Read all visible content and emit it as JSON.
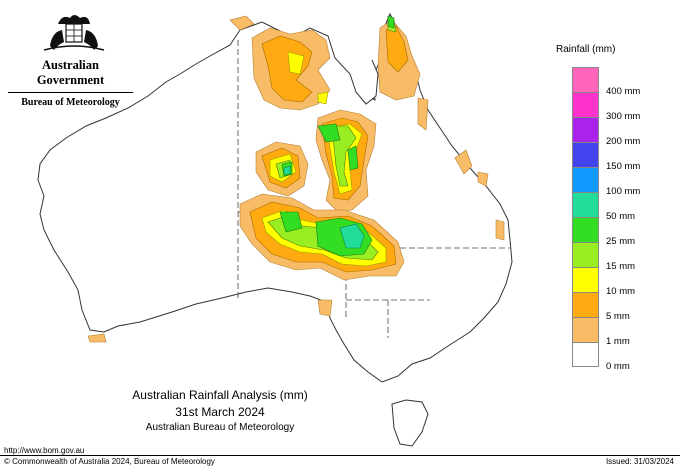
{
  "header": {
    "government": "Australian Government",
    "agency": "Bureau of Meteorology"
  },
  "legend": {
    "title": "Rainfall (mm)",
    "items": [
      {
        "label": "",
        "color": "#ff66bb"
      },
      {
        "label": "400 mm",
        "color": "#ff33cc"
      },
      {
        "label": "300 mm",
        "color": "#aa22ee"
      },
      {
        "label": "200 mm",
        "color": "#4444ee"
      },
      {
        "label": "150 mm",
        "color": "#1199ff"
      },
      {
        "label": "100 mm",
        "color": "#22dd99"
      },
      {
        "label": "50 mm",
        "color": "#33dd22"
      },
      {
        "label": "25 mm",
        "color": "#99ee22"
      },
      {
        "label": "15 mm",
        "color": "#ffff00"
      },
      {
        "label": "10 mm",
        "color": "#ffaa11"
      },
      {
        "label": "5 mm",
        "color": "#f8bb66"
      },
      {
        "label": "1 mm",
        "color": "#ffffff"
      },
      {
        "label": "0 mm",
        "color": ""
      }
    ]
  },
  "titles": {
    "line1": "Australian Rainfall Analysis (mm)",
    "line2": "31st March 2024",
    "line3": "Australian Bureau of Meteorology"
  },
  "footer": {
    "url": "http://www.bom.gov.au",
    "copyright": "© Commonwealth of Australia 2024, Bureau of Meteorology",
    "issued": "Issued: 31/03/2024"
  }
}
